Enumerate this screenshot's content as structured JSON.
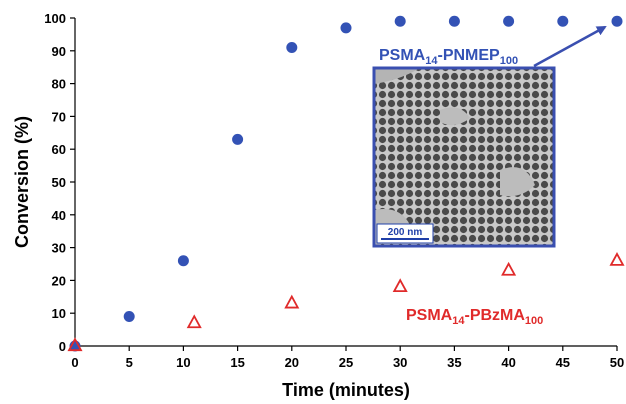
{
  "chart_data": {
    "type": "scatter",
    "xlabel": "Time (minutes)",
    "ylabel": "Conversion (%)",
    "xlim": [
      0,
      50
    ],
    "ylim": [
      0,
      100
    ],
    "xticks": [
      0,
      5,
      10,
      15,
      20,
      25,
      30,
      35,
      40,
      45,
      50
    ],
    "yticks": [
      0,
      10,
      20,
      30,
      40,
      50,
      60,
      70,
      80,
      90,
      100
    ],
    "grid": false,
    "series": [
      {
        "name": "PSMA14-PNMEP100",
        "label_main": "PSMA",
        "label_sub1": "14",
        "label_mid": "-PNMEP",
        "label_sub2": "100",
        "marker": "filled-circle",
        "color": "#3352b5",
        "x": [
          0,
          5,
          10,
          15,
          20,
          25,
          30,
          35,
          40,
          45,
          50
        ],
        "y": [
          0,
          9,
          26,
          63,
          91,
          97,
          99,
          99,
          99,
          99,
          99
        ]
      },
      {
        "name": "PSMA14-PBzMA100",
        "label_main": "PSMA",
        "label_sub1": "14",
        "label_mid": "-PBzMA",
        "label_sub2": "100",
        "marker": "open-triangle",
        "color": "#e02a2a",
        "x": [
          0,
          11,
          20,
          30,
          40,
          50
        ],
        "y": [
          0,
          7,
          13,
          18,
          23,
          26
        ]
      }
    ],
    "inset": {
      "description": "TEM micrograph",
      "scale_bar_label": "200 nm",
      "border_color": "#3a4fb0"
    }
  }
}
